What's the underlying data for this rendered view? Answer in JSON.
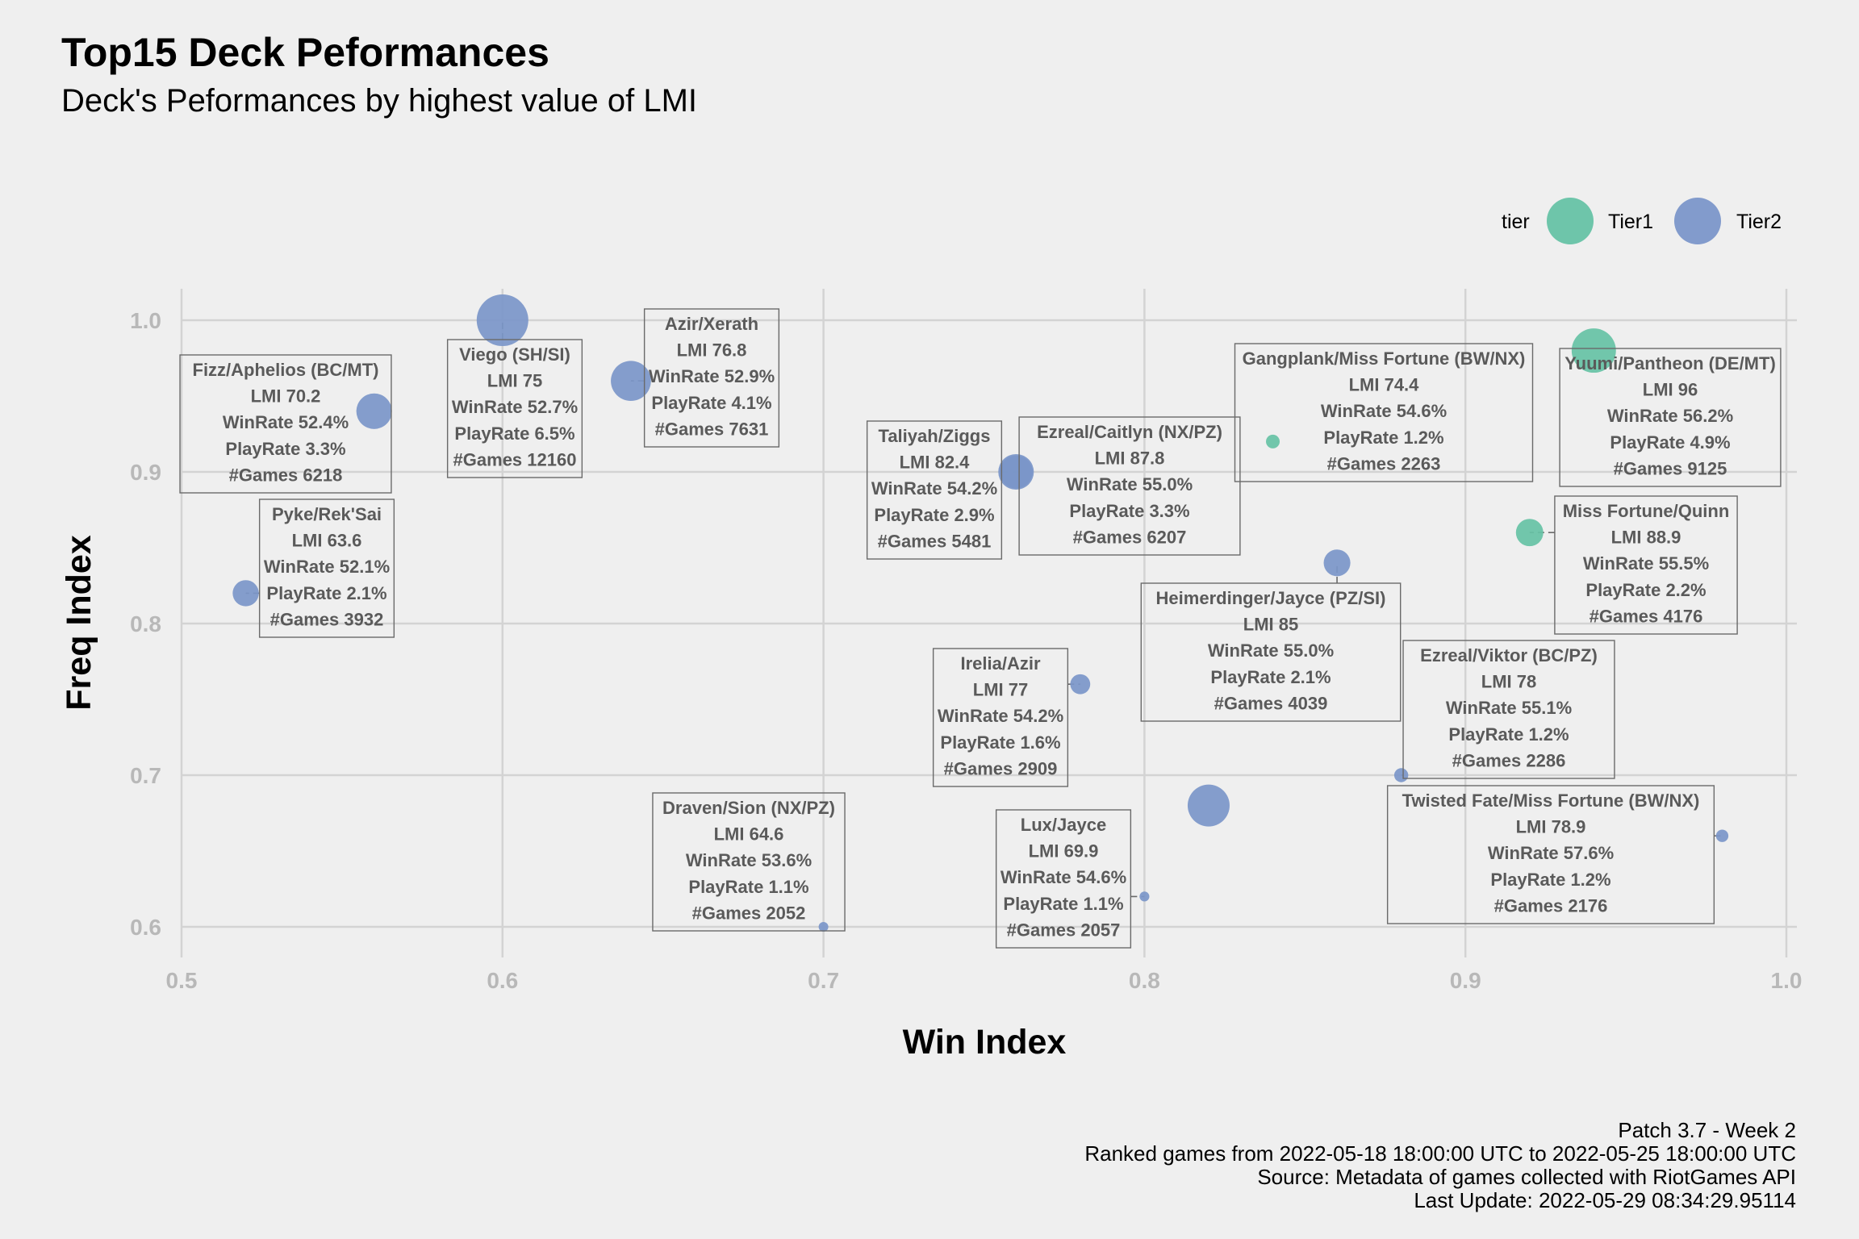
{
  "title": "Top15 Deck Peformances",
  "subtitle": "Deck's Peformances by highest value of LMI",
  "caption": [
    "Patch 3.7 - Week 2",
    "Ranked games from 2022-05-18 18:00:00 UTC to 2022-05-25 18:00:00 UTC",
    "Source: Metadata of games collected with RiotGames API",
    "Last Update: 2022-05-29 08:34:29.95114"
  ],
  "chart_data": {
    "type": "scatter",
    "title": "Top15 Deck Peformances",
    "subtitle": "Deck's Peformances by highest value of LMI",
    "xlabel": "Win Index",
    "ylabel": "Freq Index",
    "xlim": [
      0.5,
      1.0
    ],
    "ylim": [
      0.6,
      1.0
    ],
    "xticks": [
      "0.5",
      "0.6",
      "0.7",
      "0.8",
      "0.9",
      "1.0"
    ],
    "yticks": [
      "0.6",
      "0.7",
      "0.8",
      "0.9",
      "1.0"
    ],
    "grid": true,
    "legend": {
      "title": "tier",
      "position": "top-right",
      "entries": [
        {
          "name": "Tier1",
          "color": "#66c2a5"
        },
        {
          "name": "Tier2",
          "color": "#7b96c9"
        }
      ]
    },
    "size_variable": "Games",
    "points": [
      {
        "deck": "Yuumi/Pantheon (DE/MT)",
        "tier": "Tier1",
        "x": 0.94,
        "y": 0.98,
        "lmi": "96",
        "winrate": "56.2%",
        "playrate": "4.9%",
        "games": "9125",
        "lines": [
          "Yuumi/Pantheon (DE/MT)",
          "LMI 96",
          "WinRate 56.2%",
          "PlayRate 4.9%",
          "#Games 9125"
        ]
      },
      {
        "deck": "Miss Fortune/Quinn",
        "tier": "Tier1",
        "x": 0.92,
        "y": 0.86,
        "lmi": "88.9",
        "winrate": "55.5%",
        "playrate": "2.2%",
        "games": "4176",
        "lines": [
          "Miss Fortune/Quinn",
          "LMI 88.9",
          "WinRate 55.5%",
          "PlayRate 2.2%",
          "#Games 4176"
        ]
      },
      {
        "deck": "Ezreal/Caitlyn (NX/PZ)",
        "tier": "Tier2",
        "x": 0.76,
        "y": 0.9,
        "lmi": "87.8",
        "winrate": "55.0%",
        "playrate": "3.3%",
        "games": "6207",
        "lines": [
          "Ezreal/Caitlyn (NX/PZ)",
          "LMI 87.8",
          "WinRate 55.0%",
          "PlayRate 3.3%",
          "#Games 6207"
        ]
      },
      {
        "deck": "Heimerdinger/Jayce (PZ/SI)",
        "tier": "Tier2",
        "x": 0.86,
        "y": 0.84,
        "lmi": "85",
        "winrate": "55.0%",
        "playrate": "2.1%",
        "games": "4039",
        "lines": [
          "Heimerdinger/Jayce (PZ/SI)",
          "LMI 85",
          "WinRate 55.0%",
          "PlayRate 2.1%",
          "#Games 4039"
        ]
      },
      {
        "deck": "Taliyah/Ziggs",
        "tier": "Tier2",
        "x": 0.76,
        "y": 0.9,
        "lmi": "82.4",
        "winrate": "54.2%",
        "playrate": "2.9%",
        "games": "5481",
        "lines": [
          "Taliyah/Ziggs",
          "LMI 82.4",
          "WinRate 54.2%",
          "PlayRate 2.9%",
          "#Games 5481"
        ]
      },
      {
        "deck": "Twisted Fate/Miss Fortune (BW/NX)",
        "tier": "Tier2",
        "x": 0.98,
        "y": 0.66,
        "lmi": "78.9",
        "winrate": "57.6%",
        "playrate": "1.2%",
        "games": "2176",
        "lines": [
          "Twisted Fate/Miss Fortune (BW/NX)",
          "LMI 78.9",
          "WinRate 57.6%",
          "PlayRate 1.2%",
          "#Games 2176"
        ]
      },
      {
        "deck": "Ezreal/Viktor (BC/PZ)",
        "tier": "Tier2",
        "x": 0.88,
        "y": 0.7,
        "lmi": "78",
        "winrate": "55.1%",
        "playrate": "1.2%",
        "games": "2286",
        "lines": [
          "Ezreal/Viktor (BC/PZ)",
          "LMI 78",
          "WinRate 55.1%",
          "PlayRate 1.2%",
          "#Games 2286"
        ]
      },
      {
        "deck": "Irelia/Azir",
        "tier": "Tier2",
        "x": 0.78,
        "y": 0.76,
        "lmi": "77",
        "winrate": "54.2%",
        "playrate": "1.6%",
        "games": "2909",
        "lines": [
          "Irelia/Azir",
          "LMI 77",
          "WinRate 54.2%",
          "PlayRate 1.6%",
          "#Games 2909"
        ]
      },
      {
        "deck": "Azir/Xerath",
        "tier": "Tier2",
        "x": 0.64,
        "y": 0.96,
        "lmi": "76.8",
        "winrate": "52.9%",
        "playrate": "4.1%",
        "games": "7631",
        "lines": [
          "Azir/Xerath",
          "LMI 76.8",
          "WinRate 52.9%",
          "PlayRate 4.1%",
          "#Games 7631"
        ]
      },
      {
        "deck": "Viego (SH/SI)",
        "tier": "Tier2",
        "x": 0.6,
        "y": 1.0,
        "lmi": "75",
        "winrate": "52.7%",
        "playrate": "6.5%",
        "games": "12160",
        "lines": [
          "Viego (SH/SI)",
          "LMI 75",
          "WinRate 52.7%",
          "PlayRate 6.5%",
          "#Games 12160"
        ]
      },
      {
        "deck": "Gangplank/Miss Fortune (BW/NX)",
        "tier": "Tier1",
        "x": 0.84,
        "y": 0.92,
        "lmi": "74.4",
        "winrate": "54.6%",
        "playrate": "1.2%",
        "games": "2263",
        "lines": [
          "Gangplank/Miss Fortune (BW/NX)",
          "LMI 74.4",
          "WinRate 54.6%",
          "PlayRate 1.2%",
          "#Games 2263"
        ]
      },
      {
        "deck": "Fizz/Aphelios (BC/MT)",
        "tier": "Tier2",
        "x": 0.56,
        "y": 0.94,
        "lmi": "70.2",
        "winrate": "52.4%",
        "playrate": "3.3%",
        "games": "6218",
        "lines": [
          "Fizz/Aphelios (BC/MT)",
          "LMI 70.2",
          "WinRate 52.4%",
          "PlayRate 3.3%",
          "#Games 6218"
        ]
      },
      {
        "deck": "Lux/Jayce",
        "tier": "Tier2",
        "x": 0.8,
        "y": 0.62,
        "lmi": "69.9",
        "winrate": "54.6%",
        "playrate": "1.1%",
        "games": "2057",
        "lines": [
          "Lux/Jayce",
          "LMI 69.9",
          "WinRate 54.6%",
          "PlayRate 1.1%",
          "#Games 2057"
        ]
      },
      {
        "deck": "Draven/Sion (NX/PZ)",
        "tier": "Tier2",
        "x": 0.7,
        "y": 0.6,
        "lmi": "64.6",
        "winrate": "53.6%",
        "playrate": "1.1%",
        "games": "2052",
        "lines": [
          "Draven/Sion (NX/PZ)",
          "LMI 64.6",
          "WinRate 53.6%",
          "PlayRate 1.1%",
          "#Games 2052"
        ]
      },
      {
        "deck": "Pyke/Rek'Sai",
        "tier": "Tier2",
        "x": 0.52,
        "y": 0.82,
        "lmi": "63.6",
        "winrate": "52.1%",
        "playrate": "2.1%",
        "games": "3932",
        "lines": [
          "Pyke/Rek'Sai",
          "LMI 63.6",
          "WinRate 52.1%",
          "PlayRate 2.1%",
          "#Games 3932"
        ]
      }
    ],
    "extra_points": [
      {
        "tier": "Tier2",
        "x": 0.82,
        "y": 0.68
      }
    ]
  }
}
